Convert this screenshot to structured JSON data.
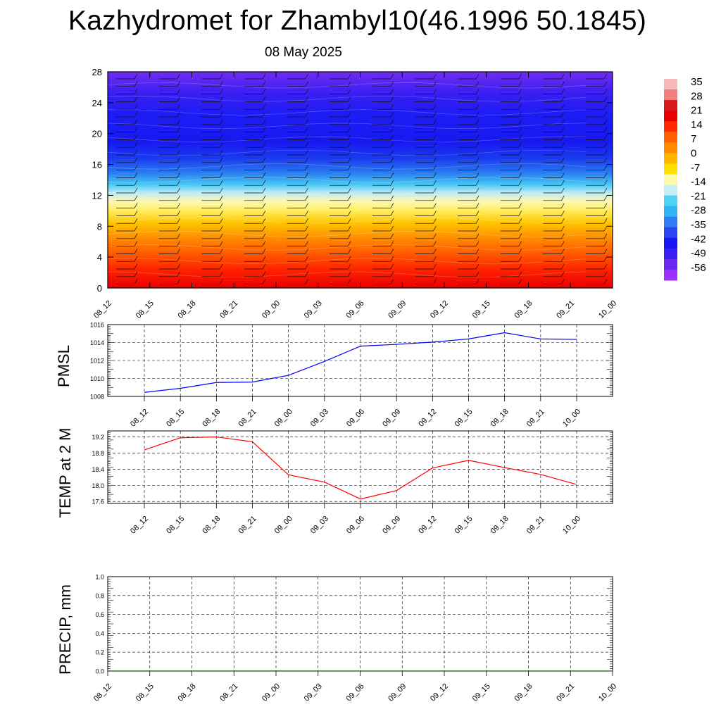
{
  "page": {
    "title": "Kazhydromet for Zhambyl10(46.1996 50.1845)",
    "subtitle": "08 May 2025"
  },
  "colors": {
    "pmsl_line": "#0000ff",
    "temp_line": "#ff0000",
    "precip_line": "#006400",
    "colorbar": [
      "#9b30ff",
      "#6a28f0",
      "#3a20f0",
      "#1818f5",
      "#2a45f0",
      "#2f7df5",
      "#2fb4f5",
      "#4fd4f5",
      "#c8eef5",
      "#fff9a8",
      "#ffe000",
      "#ffb400",
      "#ff8a00",
      "#ff6000",
      "#ff2a00",
      "#e80000",
      "#d41a1a",
      "#f08080",
      "#f7b8b8"
    ]
  },
  "chart_data": [
    {
      "id": "cross-section",
      "type": "heatmap",
      "x": [
        "08_12",
        "08_15",
        "08_18",
        "08_21",
        "09_00",
        "09_03",
        "09_06",
        "09_09",
        "09_12",
        "09_15",
        "09_18",
        "09_21",
        "10_00"
      ],
      "yticks": [
        0,
        4,
        8,
        12,
        16,
        20,
        24,
        28
      ],
      "ylim": [
        0,
        28
      ],
      "colorbar_labels": [
        "35",
        "28",
        "21",
        "14",
        "7",
        "0",
        "-7",
        "-14",
        "-21",
        "-28",
        "-35",
        "-42",
        "-49",
        "-56"
      ],
      "colorbar_range": [
        -63,
        35
      ],
      "note_overlay": "wind barbs and temperature contours"
    },
    {
      "id": "pmsl",
      "type": "line",
      "ylabel": "PMSL",
      "x": [
        "08_12",
        "08_15",
        "08_18",
        "08_21",
        "09_00",
        "09_03",
        "09_06",
        "09_09",
        "09_12",
        "09_15",
        "09_18",
        "09_21",
        "10_00"
      ],
      "values": [
        1008.45,
        1008.9,
        1009.55,
        1009.6,
        1010.35,
        1011.9,
        1013.6,
        1013.8,
        1014.05,
        1014.4,
        1015.1,
        1014.4,
        1014.35
      ],
      "yticks": [
        "1008",
        "1010",
        "1012",
        "1014",
        "1016"
      ],
      "ylim": [
        1008,
        1016
      ],
      "grid": true
    },
    {
      "id": "temp",
      "type": "line",
      "ylabel": "TEMP at 2 M",
      "x": [
        "08_12",
        "08_15",
        "08_18",
        "08_21",
        "09_00",
        "09_03",
        "09_06",
        "09_09",
        "09_12",
        "09_15",
        "09_18",
        "09_21",
        "10_00"
      ],
      "values": [
        18.88,
        19.18,
        19.2,
        19.08,
        18.26,
        18.08,
        17.66,
        17.87,
        18.43,
        18.62,
        18.44,
        18.27,
        18.02
      ],
      "yticks": [
        "17.6",
        "18.0",
        "18.4",
        "18.8",
        "19.2"
      ],
      "ylim": [
        17.55,
        19.35
      ],
      "grid": true
    },
    {
      "id": "precip",
      "type": "line",
      "ylabel": "PRECIP, mm",
      "x": [
        "08_12",
        "08_15",
        "08_18",
        "08_21",
        "09_00",
        "09_03",
        "09_06",
        "09_09",
        "09_12",
        "09_15",
        "09_18",
        "09_21",
        "10_00"
      ],
      "values": [
        0,
        0,
        0,
        0,
        0,
        0,
        0,
        0,
        0,
        0,
        0,
        0,
        0
      ],
      "yticks": [
        "0.0",
        "0.2",
        "0.4",
        "0.6",
        "0.8",
        "1.0"
      ],
      "ylim": [
        0,
        1
      ],
      "grid": true
    }
  ]
}
